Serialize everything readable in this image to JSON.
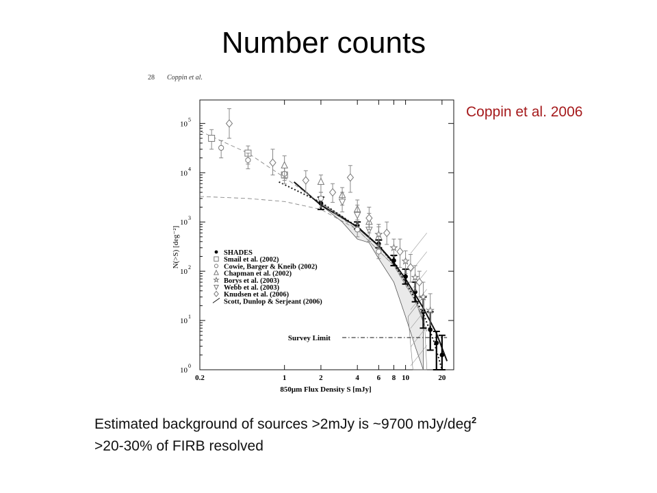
{
  "slide": {
    "title": "Number counts",
    "citation": "Coppin et al. 2006",
    "bullet1_text": "Estimated background of sources >2mJy is ~9700 mJy/deg",
    "bullet1_sup": "2",
    "bullet2_text": ">20-30% of FIRB resolved"
  },
  "figure_header": {
    "page": "28",
    "authors": "Coppin et al."
  },
  "chart_data": {
    "type": "scatter",
    "xscale": "log",
    "yscale": "log",
    "xlim": [
      0.2,
      25
    ],
    "ylim": [
      1,
      300000
    ],
    "xlabel": "850μm Flux Density S [mJy]",
    "ylabel": "N(>S) [deg⁻²]",
    "x_ticks": [
      0.2,
      1,
      2,
      4,
      6,
      8,
      10,
      20
    ],
    "x_tick_labels": [
      "0.2",
      "1",
      "2",
      "4",
      "6",
      "8",
      "10",
      "20"
    ],
    "y_ticks": [
      1,
      10,
      100,
      1000,
      10000,
      100000
    ],
    "y_tick_labels": [
      "10",
      "10",
      "10",
      "10",
      "10",
      "10"
    ],
    "y_tick_exponents": [
      "0",
      "1",
      "2",
      "3",
      "4",
      "5"
    ],
    "annotation": "Survey Limit",
    "survey_limit": {
      "y": 4.5,
      "x_range": [
        3,
        22
      ]
    },
    "legend_position": "lower-left",
    "series": [
      {
        "name": "SHADES",
        "marker": "filled-circle",
        "points": [
          [
            2,
            2400,
            1800,
            3200
          ],
          [
            4,
            850,
            720,
            1000
          ],
          [
            6,
            360,
            300,
            430
          ],
          [
            8,
            165,
            130,
            210
          ],
          [
            10,
            78,
            55,
            110
          ],
          [
            12,
            38,
            24,
            60
          ],
          [
            14,
            15,
            7,
            30
          ],
          [
            16,
            6.5,
            2.5,
            15
          ],
          [
            18,
            3.5,
            1,
            6
          ],
          [
            20,
            2,
            1,
            5
          ]
        ]
      },
      {
        "name": "Smail et al. (2002)",
        "marker": "open-square",
        "points": [
          [
            0.25,
            50000,
            30000,
            75000
          ],
          [
            0.5,
            25000,
            15000,
            35000
          ],
          [
            1,
            9000,
            6000,
            13000
          ]
        ]
      },
      {
        "name": "Cowie, Barger & Kneib (2002)",
        "marker": "open-circle",
        "points": [
          [
            0.3,
            32000,
            20000,
            45000
          ],
          [
            0.5,
            18000,
            12000,
            25000
          ],
          [
            1,
            9500,
            7000,
            13000
          ],
          [
            2,
            3000,
            2000,
            4000
          ],
          [
            4,
            700,
            500,
            900
          ],
          [
            6,
            250,
            180,
            330
          ]
        ]
      },
      {
        "name": "Chapman et al. (2002)",
        "marker": "open-triangle",
        "points": [
          [
            1,
            14000,
            8000,
            22000
          ],
          [
            2,
            6500,
            4000,
            9000
          ],
          [
            3,
            3500,
            2200,
            5000
          ],
          [
            4,
            1800,
            1100,
            2800
          ],
          [
            5,
            1000,
            600,
            1500
          ],
          [
            6,
            500,
            300,
            800
          ]
        ]
      },
      {
        "name": "Borys et al. (2003)",
        "marker": "open-star",
        "points": [
          [
            6,
            560,
            350,
            900
          ],
          [
            8,
            300,
            200,
            450
          ],
          [
            10,
            160,
            90,
            260
          ],
          [
            12,
            75,
            40,
            130
          ],
          [
            14,
            30,
            15,
            60
          ],
          [
            16,
            16,
            8,
            35
          ]
        ]
      },
      {
        "name": "Webb et al. (2003)",
        "marker": "open-down-triangle",
        "points": [
          [
            3,
            2600,
            1600,
            4000
          ],
          [
            4,
            1400,
            800,
            2200
          ],
          [
            5,
            700,
            400,
            1200
          ]
        ]
      },
      {
        "name": "Knudsen et al. (2006)",
        "marker": "open-diamond",
        "points": [
          [
            0.35,
            100000,
            50000,
            200000
          ],
          [
            0.8,
            16000,
            9000,
            30000
          ],
          [
            1.5,
            7000,
            4000,
            11000
          ],
          [
            2.5,
            4000,
            2500,
            6000
          ],
          [
            3.5,
            8000,
            4000,
            14000
          ],
          [
            5,
            1200,
            700,
            2000
          ],
          [
            7,
            600,
            350,
            1000
          ],
          [
            9,
            250,
            120,
            450
          ],
          [
            11,
            120,
            60,
            220
          ],
          [
            13,
            60,
            30,
            100
          ]
        ]
      }
    ],
    "fits": [
      {
        "name": "Scott, Dunlop & Serjeant (2006)",
        "style": "solid",
        "points": [
          [
            1.2,
            6500
          ],
          [
            2,
            2200
          ],
          [
            4,
            800
          ],
          [
            6,
            330
          ],
          [
            8,
            150
          ],
          [
            10,
            70
          ],
          [
            14,
            18
          ],
          [
            18,
            5.5
          ],
          [
            22,
            1.5
          ]
        ]
      },
      {
        "name": "dotted-fit",
        "style": "dotted",
        "points": [
          [
            0.9,
            6500
          ],
          [
            2,
            2500
          ],
          [
            4,
            800
          ],
          [
            6,
            330
          ],
          [
            8,
            140
          ],
          [
            10,
            60
          ],
          [
            14,
            14
          ],
          [
            17,
            4
          ],
          [
            20,
            1
          ]
        ]
      },
      {
        "name": "dashed-upper",
        "style": "dashed",
        "points": [
          [
            0.2,
            70000
          ],
          [
            0.5,
            25000
          ],
          [
            1,
            8000
          ],
          [
            2,
            2400
          ],
          [
            4,
            700
          ],
          [
            8,
            130
          ],
          [
            12,
            25
          ],
          [
            15,
            6
          ]
        ]
      },
      {
        "name": "dashed-lower",
        "style": "dashed",
        "points": [
          [
            0.2,
            3300
          ],
          [
            0.5,
            3000
          ],
          [
            1,
            2600
          ],
          [
            2,
            1800
          ],
          [
            4,
            700
          ],
          [
            8,
            130
          ],
          [
            12,
            25
          ],
          [
            15,
            6
          ]
        ]
      }
    ],
    "shaded_band": {
      "upper": [
        [
          2,
          2400
        ],
        [
          3,
          1300
        ],
        [
          4,
          750
        ],
        [
          6,
          320
        ],
        [
          8,
          140
        ],
        [
          10,
          60
        ],
        [
          12,
          30
        ],
        [
          14,
          10
        ]
      ],
      "lower": [
        [
          2,
          2200
        ],
        [
          3,
          1000
        ],
        [
          4,
          450
        ],
        [
          5,
          380
        ],
        [
          6,
          180
        ],
        [
          8,
          60
        ],
        [
          10,
          12
        ],
        [
          12,
          3
        ],
        [
          14,
          1
        ]
      ]
    }
  }
}
